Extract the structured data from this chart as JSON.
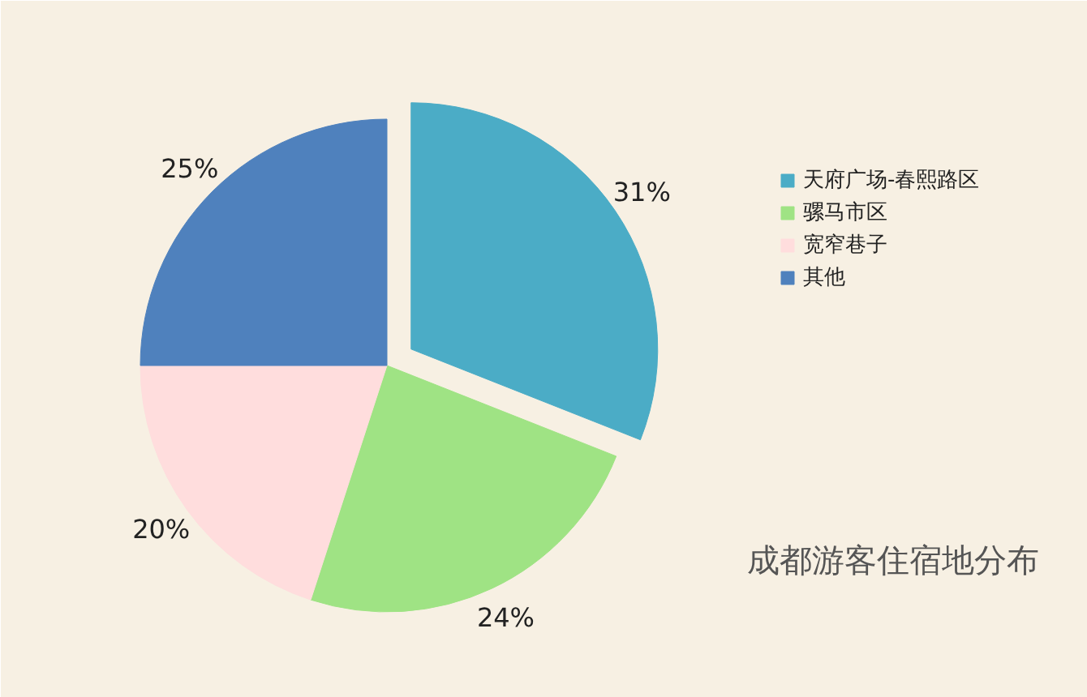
{
  "chart_data": {
    "type": "pie",
    "title": "成都游客住宿地分布",
    "categories": [
      "天府广场-春熙路区",
      "骡马市区",
      "宽窄巷子",
      "其他"
    ],
    "values": [
      31,
      24,
      20,
      25
    ],
    "colors": [
      "#4bacc6",
      "#9fe384",
      "#ffdddd",
      "#4f81bd"
    ],
    "value_labels": [
      "31%",
      "24%",
      "20%",
      "25%"
    ],
    "legend": "right"
  }
}
